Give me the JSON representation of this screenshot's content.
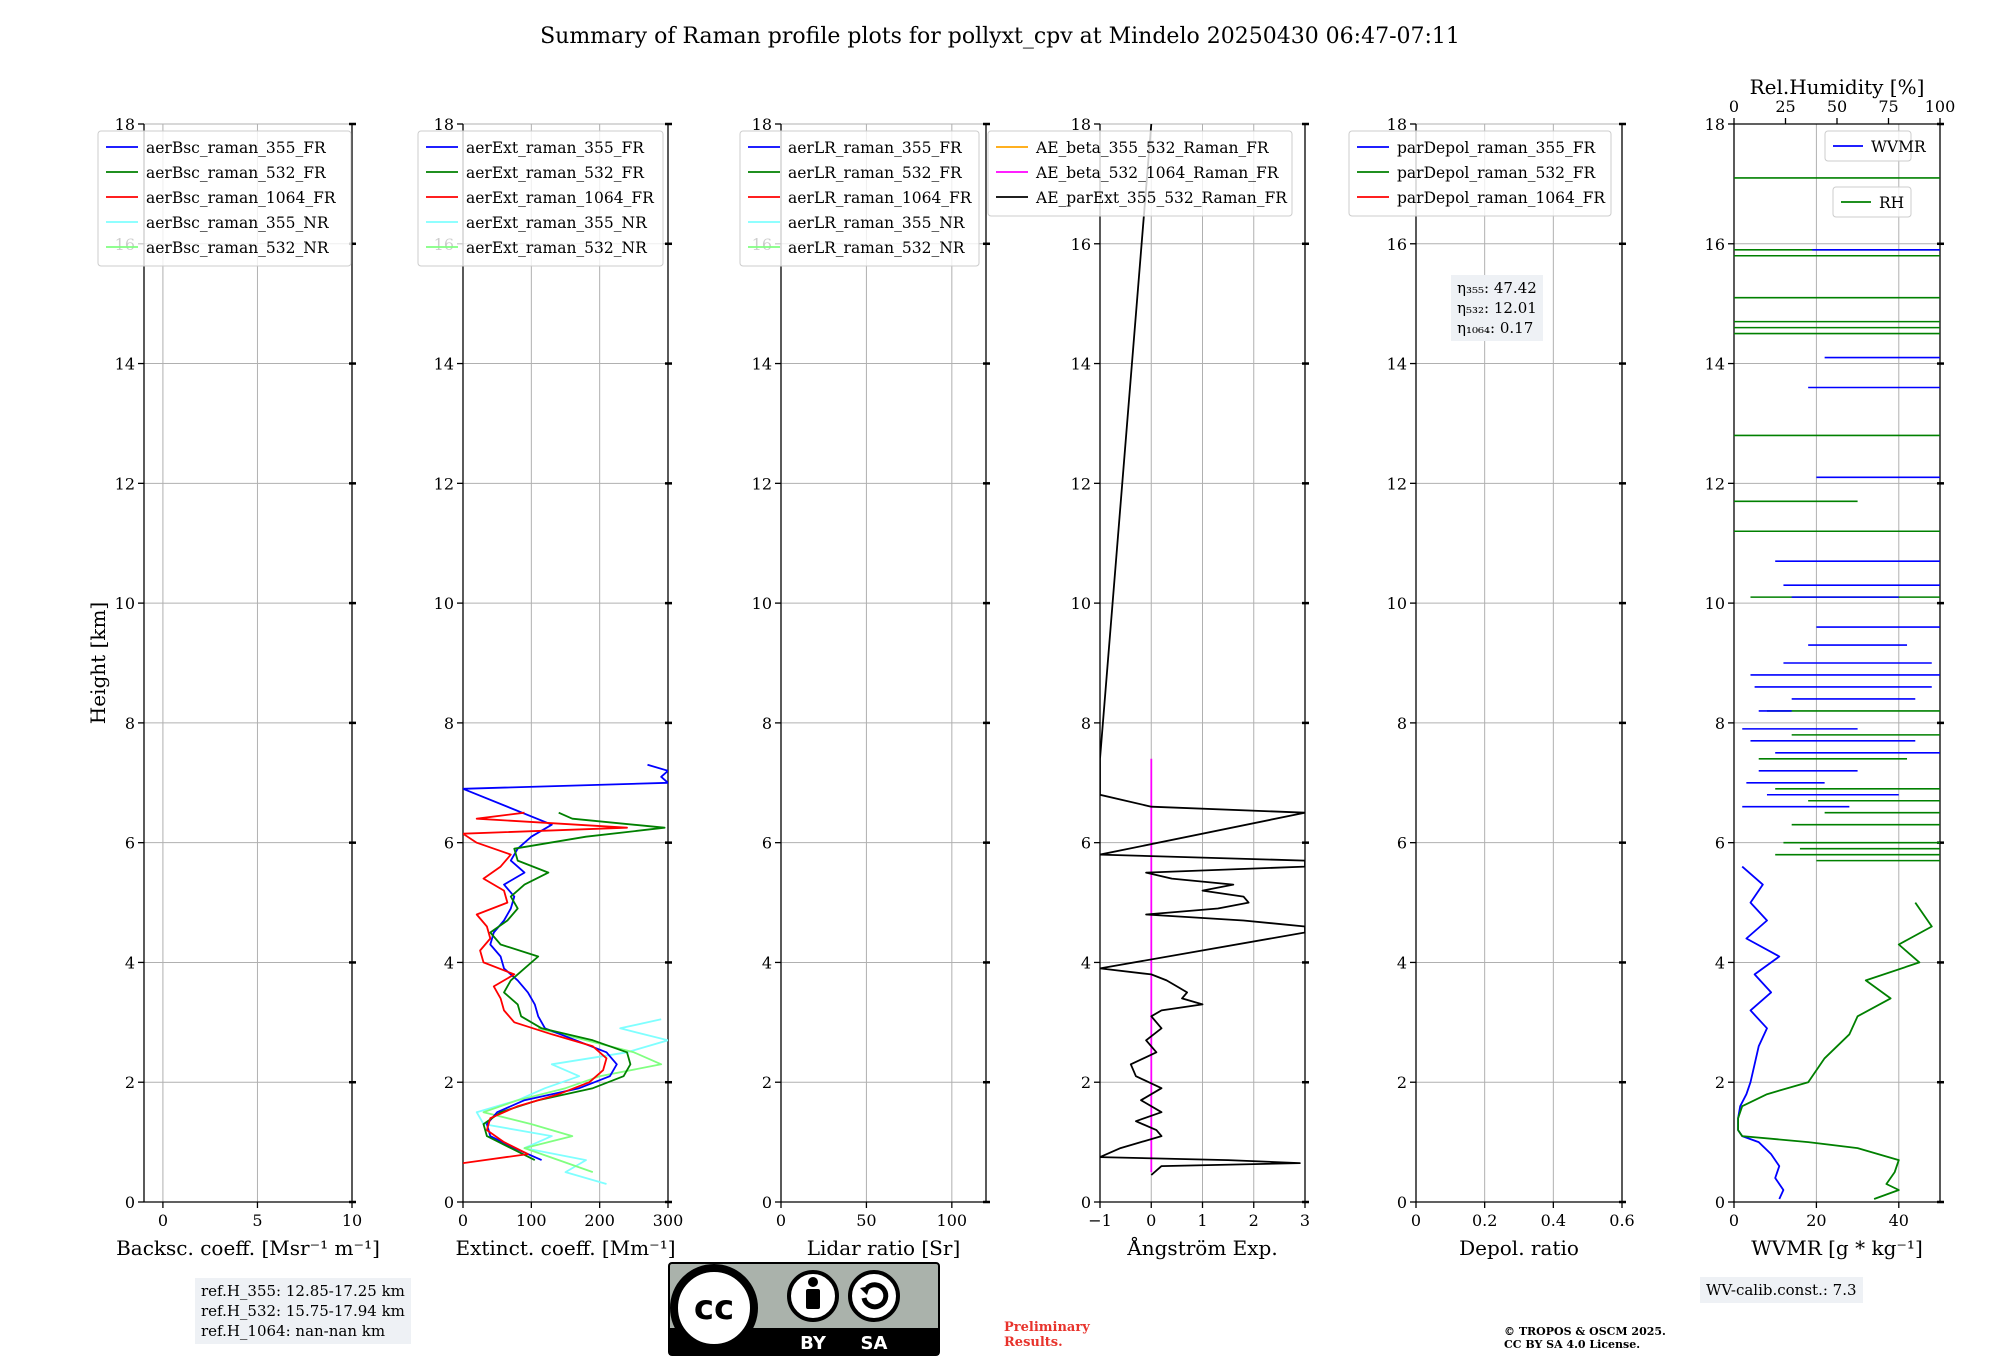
{
  "title": "Summary of Raman profile plots for pollyxt_cpv at Mindelo 20250430 06:47-07:11",
  "colors": {
    "blue": "#0000ff",
    "green": "#008000",
    "red": "#ff0000",
    "cyan": "#7fffff",
    "lightgreen": "#80ff80",
    "orange": "#ffa500",
    "magenta": "#ff00ff",
    "black": "#000000",
    "grid": "#b0b0b0"
  },
  "chart_data": [
    {
      "type": "line",
      "name": "backscatter",
      "xlabel": "Backsc. coeff. [Msr⁻¹ m⁻¹]",
      "ylabel": "Height [km]",
      "xlim": [
        -1,
        10
      ],
      "ylim": [
        0,
        18
      ],
      "xticks": [
        0,
        5,
        10
      ],
      "yticks": [
        0,
        2,
        4,
        6,
        8,
        10,
        12,
        14,
        16,
        18
      ],
      "legend": [
        "aerBsc_raman_355_FR",
        "aerBsc_raman_532_FR",
        "aerBsc_raman_1064_FR",
        "aerBsc_raman_355_NR",
        "aerBsc_raman_532_NR"
      ],
      "legend_colors": [
        "blue",
        "green",
        "red",
        "cyan",
        "lightgreen"
      ],
      "series": []
    },
    {
      "type": "line",
      "name": "extinction",
      "xlabel": "Extinct. coeff. [Mm⁻¹]",
      "xlim": [
        0,
        300
      ],
      "ylim": [
        0,
        18
      ],
      "xticks": [
        0,
        100,
        200,
        300
      ],
      "yticks": [
        0,
        2,
        4,
        6,
        8,
        10,
        12,
        14,
        16,
        18
      ],
      "legend": [
        "aerExt_raman_355_FR",
        "aerExt_raman_532_FR",
        "aerExt_raman_1064_FR",
        "aerExt_raman_355_NR",
        "aerExt_raman_532_NR"
      ],
      "legend_colors": [
        "blue",
        "green",
        "red",
        "cyan",
        "lightgreen"
      ],
      "series": [
        {
          "name": "aerExt_raman_355_NR",
          "color": "cyan",
          "h": [
            0.3,
            0.5,
            0.7,
            0.9,
            1.1,
            1.3,
            1.5,
            1.7,
            1.9,
            2.1,
            2.3,
            2.5,
            2.7,
            2.9,
            3.05
          ],
          "v": [
            210,
            150,
            180,
            90,
            130,
            30,
            20,
            80,
            120,
            170,
            130,
            240,
            300,
            230,
            290
          ]
        },
        {
          "name": "aerExt_raman_532_NR",
          "color": "lightgreen",
          "h": [
            0.5,
            0.7,
            0.9,
            1.1,
            1.3,
            1.5,
            1.7,
            1.9,
            2.1,
            2.3,
            2.5,
            2.7,
            2.9
          ],
          "v": [
            190,
            140,
            90,
            160,
            100,
            30,
            80,
            150,
            200,
            290,
            250,
            180,
            110
          ]
        },
        {
          "name": "aerExt_raman_355_FR",
          "color": "blue",
          "h": [
            0.7,
            0.9,
            1.1,
            1.3,
            1.5,
            1.7,
            1.9,
            2.1,
            2.3,
            2.5,
            2.7,
            2.9,
            3.1,
            3.3,
            3.5,
            3.7,
            3.9,
            4.1,
            4.3,
            4.5,
            4.7,
            4.9,
            5.1,
            5.3,
            5.5,
            5.7,
            5.9,
            6.1,
            6.3,
            6.9,
            7.0,
            7.1,
            7.2,
            7.3
          ],
          "v": [
            115,
            75,
            40,
            35,
            50,
            90,
            170,
            215,
            225,
            210,
            165,
            120,
            110,
            105,
            95,
            80,
            60,
            55,
            40,
            45,
            60,
            70,
            75,
            60,
            90,
            70,
            80,
            100,
            130,
            0,
            300,
            290,
            300,
            270
          ]
        },
        {
          "name": "aerExt_raman_532_FR",
          "color": "green",
          "h": [
            0.7,
            0.9,
            1.1,
            1.3,
            1.5,
            1.7,
            1.9,
            2.1,
            2.3,
            2.5,
            2.7,
            2.9,
            3.1,
            3.3,
            3.5,
            3.7,
            3.9,
            4.1,
            4.3,
            4.5,
            4.7,
            4.9,
            5.1,
            5.3,
            5.5,
            5.7,
            5.9,
            6.1,
            6.25,
            6.4,
            6.5
          ],
          "v": [
            105,
            70,
            35,
            30,
            55,
            110,
            190,
            235,
            245,
            240,
            190,
            115,
            85,
            80,
            60,
            70,
            90,
            110,
            55,
            40,
            65,
            80,
            70,
            90,
            125,
            80,
            75,
            180,
            295,
            160,
            140
          ]
        },
        {
          "name": "aerExt_raman_1064_FR",
          "color": "red",
          "h": [
            0.65,
            0.8,
            1.0,
            1.2,
            1.4,
            1.6,
            1.8,
            2.0,
            2.2,
            2.4,
            2.6,
            2.8,
            3.0,
            3.2,
            3.4,
            3.6,
            3.8,
            4.0,
            4.2,
            4.4,
            4.6,
            4.8,
            5.0,
            5.2,
            5.4,
            5.6,
            5.8,
            6.0,
            6.15,
            6.25,
            6.4,
            6.5
          ],
          "v": [
            0,
            95,
            60,
            35,
            40,
            80,
            140,
            185,
            205,
            210,
            190,
            130,
            75,
            60,
            55,
            45,
            75,
            30,
            25,
            40,
            35,
            20,
            65,
            60,
            30,
            55,
            70,
            20,
            0,
            240,
            20,
            90
          ]
        }
      ]
    },
    {
      "type": "line",
      "name": "lidar_ratio",
      "xlabel": "Lidar ratio [Sr]",
      "xlim": [
        0,
        120
      ],
      "ylim": [
        0,
        18
      ],
      "xticks": [
        0,
        50,
        100
      ],
      "yticks": [
        0,
        2,
        4,
        6,
        8,
        10,
        12,
        14,
        16,
        18
      ],
      "legend": [
        "aerLR_raman_355_FR",
        "aerLR_raman_532_FR",
        "aerLR_raman_1064_FR",
        "aerLR_raman_355_NR",
        "aerLR_raman_532_NR"
      ],
      "legend_colors": [
        "blue",
        "green",
        "red",
        "cyan",
        "lightgreen"
      ],
      "series": []
    },
    {
      "type": "line",
      "name": "angstrom",
      "xlabel": "Ångström Exp.",
      "xlim": [
        -1,
        3
      ],
      "ylim": [
        0,
        18
      ],
      "xticks": [
        -1,
        0,
        1,
        2,
        3
      ],
      "yticks": [
        0,
        2,
        4,
        6,
        8,
        10,
        12,
        14,
        16,
        18
      ],
      "legend": [
        "AE_beta_355_532_Raman_FR",
        "AE_beta_532_1064_Raman_FR",
        "AE_parExt_355_532_Raman_FR"
      ],
      "legend_colors": [
        "orange",
        "magenta",
        "black"
      ],
      "series": [
        {
          "name": "AE_beta_532_1064_Raman_FR",
          "color": "magenta",
          "h": [
            0.5,
            7.4
          ],
          "v": [
            0,
            0
          ]
        },
        {
          "name": "AE_parExt_355_532_Raman_FR",
          "color": "black",
          "h": [
            0.45,
            0.6,
            0.65,
            0.7,
            0.75,
            0.9,
            1.1,
            1.2,
            1.35,
            1.5,
            1.7,
            1.9,
            2.1,
            2.3,
            2.5,
            2.7,
            2.9,
            3.1,
            3.2,
            3.3,
            3.4,
            3.5,
            3.6,
            3.7,
            3.8,
            3.9,
            4.5,
            4.6,
            4.7,
            4.8,
            4.9,
            5.0,
            5.1,
            5.2,
            5.3,
            5.4,
            5.5,
            5.6,
            5.7,
            5.8,
            6.5,
            6.6,
            6.8,
            7.4,
            18.0
          ],
          "v": [
            0,
            0.2,
            2.9,
            1.5,
            -1,
            -0.6,
            0.2,
            0.1,
            -0.3,
            0.2,
            -0.2,
            0.2,
            -0.3,
            -0.4,
            0.1,
            -0.1,
            0.2,
            0.0,
            0.2,
            1.0,
            0.6,
            0.7,
            0.5,
            0.3,
            0.0,
            -1,
            3.0,
            3.0,
            1.8,
            -0.1,
            1.3,
            1.9,
            1.8,
            1.0,
            1.6,
            0.4,
            -0.1,
            3.0,
            3.0,
            -1,
            3.0,
            0.0,
            -1,
            -1,
            0.0
          ]
        }
      ]
    },
    {
      "type": "line",
      "name": "depolarization",
      "xlabel": "Depol. ratio",
      "xlim": [
        0,
        0.6
      ],
      "ylim": [
        0,
        18
      ],
      "xticks": [
        0.0,
        0.2,
        0.4,
        0.6
      ],
      "yticks": [
        0,
        2,
        4,
        6,
        8,
        10,
        12,
        14,
        16,
        18
      ],
      "legend": [
        "parDepol_raman_355_FR",
        "parDepol_raman_532_FR",
        "parDepol_raman_1064_FR"
      ],
      "legend_colors": [
        "blue",
        "green",
        "red"
      ],
      "series": []
    },
    {
      "type": "line",
      "name": "water_vapor",
      "xlabel": "WVMR [g * kg⁻¹]",
      "top_xlabel": "Rel.Humidity [%]",
      "xlim": [
        0,
        50
      ],
      "ylim": [
        0,
        18
      ],
      "top_xlim": [
        0,
        100
      ],
      "xticks": [
        0,
        20,
        40
      ],
      "top_xticks": [
        0,
        25,
        50,
        75,
        100
      ],
      "yticks": [
        0,
        2,
        4,
        6,
        8,
        10,
        12,
        14,
        16,
        18
      ],
      "legend": [
        "WVMR",
        "RH"
      ],
      "legend_colors": [
        "blue",
        "green"
      ],
      "series": [
        {
          "name": "WVMR",
          "color": "blue",
          "h": [
            0.05,
            0.2,
            0.4,
            0.6,
            0.8,
            1.0,
            1.1,
            1.2,
            1.4,
            1.6,
            1.8,
            2.0,
            2.3,
            2.6,
            2.9,
            3.2,
            3.5,
            3.8,
            4.1,
            4.4,
            4.7,
            5.0,
            5.3,
            5.6
          ],
          "v": [
            11,
            12,
            10,
            11,
            9,
            6,
            2,
            1,
            1,
            1.5,
            3,
            4,
            5,
            6,
            8,
            4,
            9,
            5,
            11,
            3,
            8,
            4,
            7,
            2
          ]
        },
        {
          "name": "RH",
          "color": "green",
          "h": [
            0.05,
            0.2,
            0.3,
            0.5,
            0.7,
            0.9,
            1.0,
            1.1,
            1.2,
            1.4,
            1.6,
            1.8,
            2.0,
            2.2,
            2.4,
            2.6,
            2.8,
            3.1,
            3.4,
            3.7,
            4.0,
            4.3,
            4.6,
            5.0
          ],
          "v": [
            34,
            40,
            37,
            39,
            40,
            30,
            18,
            2,
            1,
            1,
            2,
            8,
            18,
            20,
            22,
            25,
            28,
            30,
            38,
            32,
            45,
            40,
            48,
            44
          ]
        }
      ],
      "wvmr_segments": [
        [
          15.9,
          19,
          50
        ],
        [
          14.1,
          22,
          50
        ],
        [
          13.6,
          18,
          50
        ],
        [
          12.1,
          20,
          50
        ],
        [
          10.7,
          10,
          50
        ],
        [
          10.3,
          12,
          50
        ],
        [
          10.1,
          14,
          40
        ],
        [
          9.6,
          20,
          50
        ],
        [
          9.3,
          18,
          42
        ],
        [
          9.0,
          12,
          48
        ],
        [
          8.8,
          4,
          50
        ],
        [
          8.6,
          5,
          48
        ],
        [
          8.4,
          14,
          44
        ],
        [
          8.2,
          6,
          14
        ],
        [
          7.9,
          2,
          30
        ],
        [
          7.7,
          4,
          44
        ],
        [
          7.5,
          10,
          50
        ],
        [
          7.2,
          6,
          30
        ],
        [
          7.0,
          3,
          22
        ],
        [
          6.8,
          8,
          40
        ],
        [
          6.6,
          2,
          28
        ]
      ],
      "rh_segments": [
        [
          17.1,
          0,
          50
        ],
        [
          15.9,
          0,
          50
        ],
        [
          15.8,
          0,
          50
        ],
        [
          15.1,
          0,
          50
        ],
        [
          14.7,
          0,
          50
        ],
        [
          14.6,
          0,
          50
        ],
        [
          14.5,
          0,
          50
        ],
        [
          12.8,
          0,
          50
        ],
        [
          11.7,
          0,
          30
        ],
        [
          11.2,
          0,
          50
        ],
        [
          10.1,
          4,
          50
        ],
        [
          8.2,
          8,
          50
        ],
        [
          7.8,
          14,
          50
        ],
        [
          7.4,
          6,
          42
        ],
        [
          6.9,
          10,
          50
        ],
        [
          6.7,
          18,
          50
        ],
        [
          6.5,
          22,
          50
        ],
        [
          6.3,
          14,
          50
        ],
        [
          6.0,
          12,
          50
        ],
        [
          5.9,
          16,
          50
        ],
        [
          5.8,
          10,
          50
        ],
        [
          5.7,
          20,
          50
        ]
      ]
    }
  ],
  "depol_info": {
    "line1": "η₃₅₅: 47.42",
    "line2": "η₅₃₂: 12.01",
    "line3": "η₁₀₆₄: 0.17"
  },
  "ref_info": {
    "line1": "ref.H_355: 12.85-17.25 km",
    "line2": "ref.H_532: 15.75-17.94 km",
    "line3": "ref.H_1064: nan-nan km"
  },
  "wv_calib": "WV-calib.const.: 7.3",
  "prelim": {
    "line1": "Preliminary",
    "line2": "Results."
  },
  "copyright": {
    "line1": "© TROPOS & OSCM 2025.",
    "line2": "CC BY SA 4.0 License."
  },
  "license": {
    "cc": "cc",
    "by": "BY",
    "sa": "SA"
  }
}
